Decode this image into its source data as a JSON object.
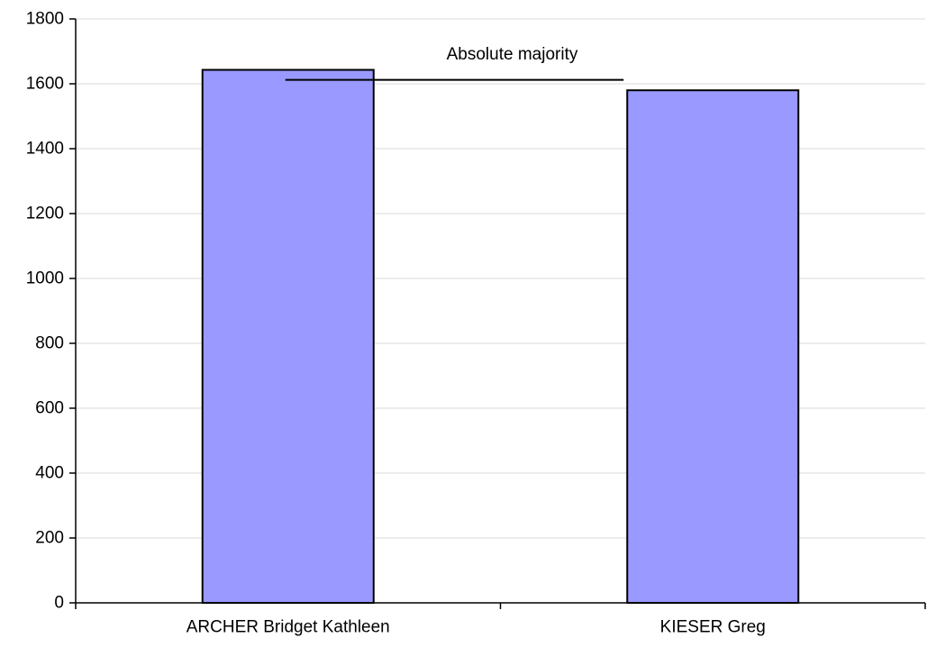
{
  "chart_data": {
    "type": "bar",
    "categories": [
      "ARCHER Bridget Kathleen",
      "KIESER Greg"
    ],
    "values": [
      1643,
      1580
    ],
    "ylim": [
      0,
      1800
    ],
    "y_ticks": [
      0,
      200,
      400,
      600,
      800,
      1000,
      1200,
      1400,
      1600,
      1800
    ],
    "grid": true,
    "annotation": {
      "label": "Absolute majority",
      "value": 1612
    },
    "colors": {
      "bar_fill": "#9999ff",
      "bar_stroke": "#000000",
      "grid": "#d9d9d9",
      "axis": "#000000"
    }
  }
}
